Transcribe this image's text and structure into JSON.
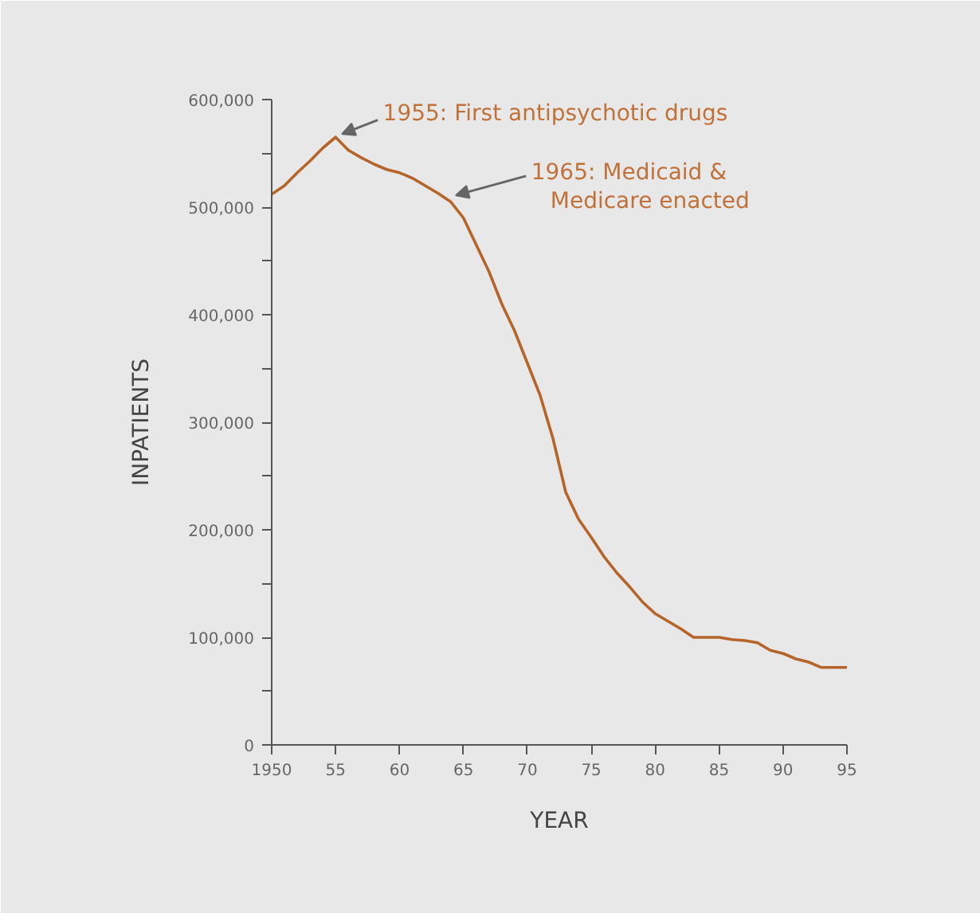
{
  "chart_data": {
    "type": "line",
    "xlabel": "YEAR",
    "ylabel": "INPATIENTS",
    "x": [
      1950,
      1951,
      1952,
      1953,
      1954,
      1955,
      1956,
      1957,
      1958,
      1959,
      1960,
      1961,
      1962,
      1963,
      1964,
      1965,
      1966,
      1967,
      1968,
      1969,
      1970,
      1971,
      1972,
      1973,
      1974,
      1975,
      1976,
      1977,
      1978,
      1979,
      1980,
      1981,
      1982,
      1983,
      1984,
      1985,
      1986,
      1987,
      1988,
      1989,
      1990,
      1991,
      1992,
      1993,
      1994,
      1995
    ],
    "series": [
      {
        "color": "#b5652a",
        "values": [
          512000,
          520000,
          532000,
          543000,
          555000,
          565000,
          553000,
          546000,
          540000,
          535000,
          532000,
          527000,
          520000,
          513000,
          505000,
          490000,
          465000,
          440000,
          410000,
          385000,
          355000,
          325000,
          285000,
          235000,
          210000,
          193000,
          175000,
          160000,
          147000,
          133000,
          122000,
          115000,
          108000,
          100000,
          100000,
          100000,
          98000,
          97000,
          95000,
          88000,
          85000,
          80000,
          77000,
          72000,
          72000,
          72000
        ]
      }
    ],
    "xlim": [
      1950,
      1995
    ],
    "ylim": [
      0,
      600000
    ],
    "xticks": [
      {
        "value": 1950,
        "label": "1950"
      },
      {
        "value": 1955,
        "label": "55"
      },
      {
        "value": 1960,
        "label": "60"
      },
      {
        "value": 1965,
        "label": "65"
      },
      {
        "value": 1970,
        "label": "70"
      },
      {
        "value": 1975,
        "label": "75"
      },
      {
        "value": 1980,
        "label": "80"
      },
      {
        "value": 1985,
        "label": "85"
      },
      {
        "value": 1990,
        "label": "90"
      },
      {
        "value": 1995,
        "label": "95"
      }
    ],
    "yticks": [
      0,
      {
        "value": 50000,
        "label": null
      },
      {
        "value": 100000,
        "label": "100,000"
      },
      {
        "value": 150000,
        "label": null
      },
      {
        "value": 200000,
        "label": "200,000"
      },
      {
        "value": 250000,
        "label": null
      },
      {
        "value": 300000,
        "label": "300,000"
      },
      {
        "value": 350000,
        "label": null
      },
      {
        "value": 400000,
        "label": "400,000"
      },
      {
        "value": 450000,
        "label": null
      },
      {
        "value": 500000,
        "label": "500,000"
      },
      {
        "value": 550000,
        "label": null
      },
      {
        "value": 600000,
        "label": "600,000"
      }
    ],
    "annotations": [
      {
        "text": "1955: First antipsychotic drugs",
        "x": 1955,
        "y": 565000
      },
      {
        "text": "1965: Medicaid &\nMedicare enacted",
        "x": 1964,
        "y": 512000
      }
    ],
    "marker": "none",
    "line_style": "solid"
  }
}
